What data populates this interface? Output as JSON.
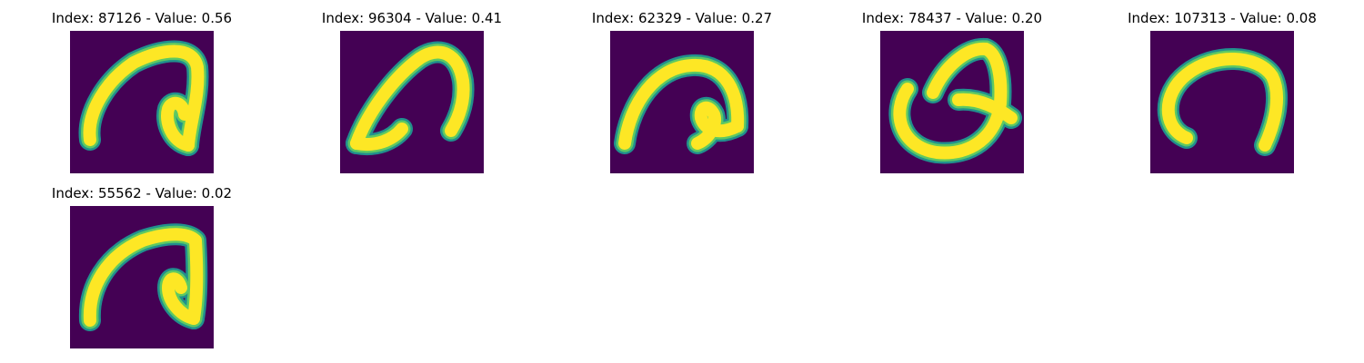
{
  "colors": {
    "background": "#440154",
    "stroke_edge": "#21908d",
    "stroke_mid": "#5ec962",
    "stroke_core": "#fde725"
  },
  "panels": [
    {
      "title": "Index: 87126 - Value: 0.56",
      "index": 87126,
      "value": 0.56
    },
    {
      "title": "Index: 96304 - Value: 0.41",
      "index": 96304,
      "value": 0.41
    },
    {
      "title": "Index: 62329 - Value: 0.27",
      "index": 62329,
      "value": 0.27
    },
    {
      "title": "Index: 78437 - Value: 0.20",
      "index": 78437,
      "value": 0.2
    },
    {
      "title": "Index: 107313 - Value: 0.08",
      "index": 107313,
      "value": 0.08
    },
    {
      "title": "Index: 55562 - Value: 0.02",
      "index": 55562,
      "value": 0.02
    }
  ]
}
